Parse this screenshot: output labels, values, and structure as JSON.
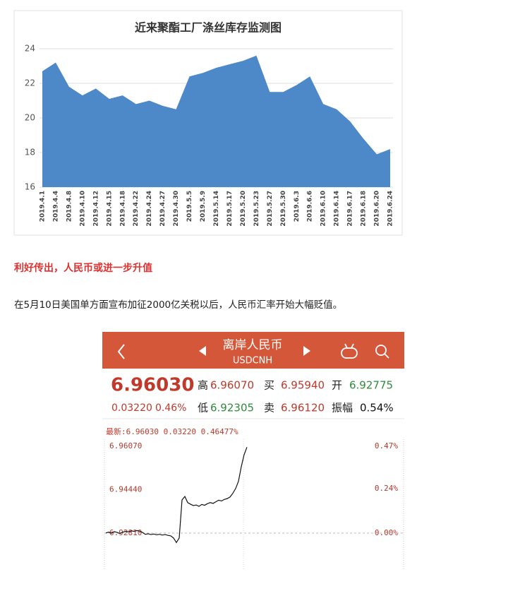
{
  "chart_data": [
    {
      "type": "area",
      "title": "近来聚酯工厂涤丝库存监测图",
      "categories": [
        "2019.4.1",
        "2019.4.4",
        "2019.4.8",
        "2019.4.10",
        "2019.4.12",
        "2019.4.15",
        "2019.4.18",
        "2019.4.22",
        "2019.4.24",
        "2019.4.27",
        "2019.4.30",
        "2019.5.5",
        "2019.5.9",
        "2019.5.14",
        "2019.5.17",
        "2019.5.20",
        "2019.5.23",
        "2019.5.27",
        "2019.5.30",
        "2019.6.3",
        "2019.6.6",
        "2019.6.10",
        "2019.6.14",
        "2019.6.17",
        "2019.6.18",
        "2019.6.20",
        "2019.6.24"
      ],
      "values": [
        22.7,
        23.2,
        21.8,
        21.3,
        21.7,
        21.1,
        21.3,
        20.8,
        21.0,
        20.7,
        20.5,
        22.4,
        22.6,
        22.9,
        23.1,
        23.3,
        23.6,
        21.5,
        21.5,
        21.9,
        22.4,
        20.8,
        20.5,
        19.8,
        18.8,
        17.9,
        18.2
      ],
      "color": "#4d88c9",
      "ylim": [
        16,
        24
      ],
      "yticks": [
        16,
        18,
        20,
        22,
        24
      ],
      "grid": true
    },
    {
      "type": "line",
      "annotation": "最新:6.96030 0.03220 0.46477%",
      "values": [
        6.9281,
        6.9284,
        6.928,
        6.9286,
        6.9283,
        6.9279,
        6.9284,
        6.9287,
        6.9285,
        6.9289,
        6.9287,
        6.929,
        6.9288,
        6.9283,
        6.9276,
        6.9278,
        6.9275,
        6.9277,
        6.9274,
        6.9276,
        6.9273,
        6.9275,
        6.9272,
        6.927,
        6.9262,
        6.9245,
        6.9262,
        6.9405,
        6.9418,
        6.9395,
        6.9389,
        6.9384,
        6.9386,
        6.9381,
        6.9388,
        6.9385,
        6.9391,
        6.9395,
        6.9392,
        6.9398,
        6.9404,
        6.9401,
        6.9407,
        6.941,
        6.9416,
        6.943,
        6.9448,
        6.9475,
        6.953,
        6.9575,
        6.9603
      ],
      "color": "#111111",
      "ylim": [
        6.914,
        6.9633
      ],
      "yticks": [
        {
          "value": 6.9607,
          "label": "6.96070"
        },
        {
          "value": 6.9444,
          "label": "6.94440"
        },
        {
          "value": 6.9281,
          "label": "6.92810"
        }
      ],
      "y2lim": [
        -0.2025,
        0.5082
      ],
      "y2ticks": [
        {
          "value": 0.47,
          "label": "0.47%"
        },
        {
          "value": 0.24,
          "label": "0.24%"
        },
        {
          "value": 0,
          "label": "0.00%"
        }
      ]
    }
  ],
  "article": {
    "heading": "利好传出，人民币或进一步升值",
    "paragraph": "在5月10日美国单方面宣布加征2000亿关税以后，人民币汇率开始大幅贬值。"
  },
  "quote": {
    "title": "离岸人民币",
    "symbol": "USDCNH",
    "price": "6.96030",
    "change": "0.03220",
    "change_pct": "0.46%",
    "fields": [
      {
        "label": "高",
        "value": "6.96070",
        "color": "#c0392b"
      },
      {
        "label": "买",
        "value": "6.95940",
        "color": "#c0392b"
      },
      {
        "label": "开",
        "value": "6.92775",
        "color": "#2e8b3a"
      },
      {
        "label": "低",
        "value": "6.92305",
        "color": "#2e8b3a"
      },
      {
        "label": "卖",
        "value": "6.96120",
        "color": "#c0392b"
      },
      {
        "label": "振幅",
        "value": "0.54%",
        "color": "#111111"
      }
    ]
  }
}
